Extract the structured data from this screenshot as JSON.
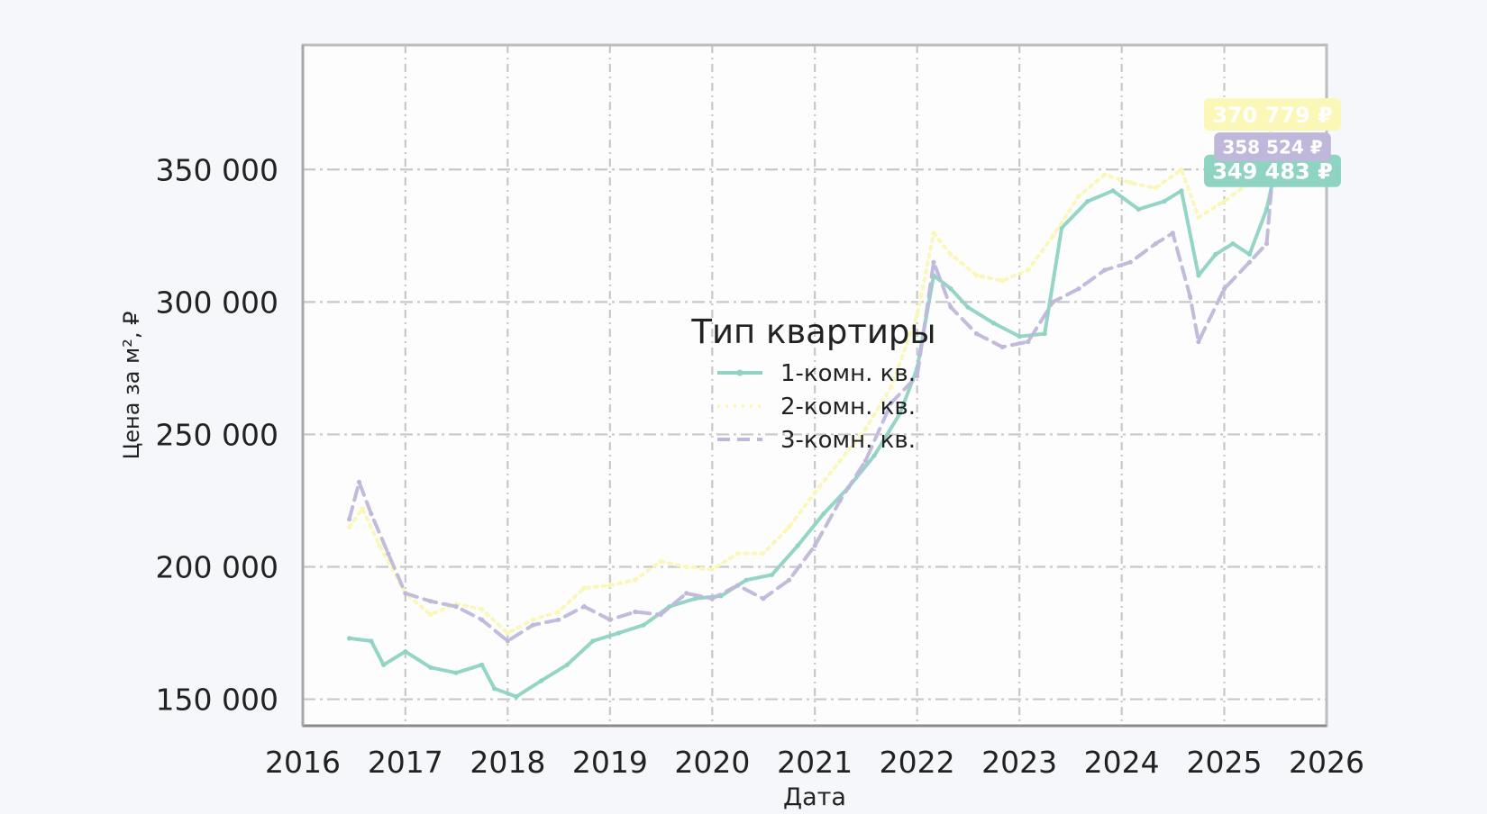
{
  "chart_data": {
    "type": "line",
    "title": "",
    "xlabel": "Дата",
    "ylabel": "Цена за м², ₽",
    "xlim": [
      "2016-01-01",
      "2026-01-01"
    ],
    "ylim": [
      140000,
      397000
    ],
    "grid": true,
    "x_ticks": [
      "2016",
      "2017",
      "2018",
      "2019",
      "2020",
      "2021",
      "2022",
      "2023",
      "2024",
      "2025",
      "2026"
    ],
    "y_ticks": [
      "150 000",
      "200 000",
      "250 000",
      "300 000",
      "350 000"
    ],
    "legend": {
      "title": "Тип квартиры",
      "placement": "center"
    },
    "colors": {
      "background": "#f6f7fa",
      "plot_background": "#fdfdfe",
      "grid": "#c8c8cc",
      "axis": "#bdbdbd",
      "text": "#222222"
    },
    "series": [
      {
        "name": "1-комн. кв.",
        "color": "#8fd3c3",
        "line_style": "solid",
        "end_label": "349 483 ₽",
        "points": [
          [
            "2016-06-15",
            173000
          ],
          [
            "2016-09-01",
            172000
          ],
          [
            "2016-10-15",
            163000
          ],
          [
            "2017-01-01",
            168000
          ],
          [
            "2017-04-01",
            162000
          ],
          [
            "2017-07-01",
            160000
          ],
          [
            "2017-10-01",
            163000
          ],
          [
            "2017-11-15",
            154000
          ],
          [
            "2018-02-01",
            151000
          ],
          [
            "2018-05-01",
            157000
          ],
          [
            "2018-08-01",
            163000
          ],
          [
            "2018-11-01",
            172000
          ],
          [
            "2019-02-01",
            175000
          ],
          [
            "2019-05-01",
            178000
          ],
          [
            "2019-08-01",
            185000
          ],
          [
            "2019-11-01",
            188000
          ],
          [
            "2020-02-01",
            189000
          ],
          [
            "2020-05-01",
            195000
          ],
          [
            "2020-08-01",
            197000
          ],
          [
            "2020-11-01",
            208000
          ],
          [
            "2021-02-01",
            220000
          ],
          [
            "2021-05-01",
            230000
          ],
          [
            "2021-08-01",
            242000
          ],
          [
            "2021-11-01",
            258000
          ],
          [
            "2022-01-01",
            275000
          ],
          [
            "2022-03-01",
            310000
          ],
          [
            "2022-05-01",
            305000
          ],
          [
            "2022-07-01",
            298000
          ],
          [
            "2022-10-01",
            292000
          ],
          [
            "2023-01-01",
            287000
          ],
          [
            "2023-04-01",
            288000
          ],
          [
            "2023-06-01",
            328000
          ],
          [
            "2023-09-01",
            338000
          ],
          [
            "2023-12-01",
            342000
          ],
          [
            "2024-03-01",
            335000
          ],
          [
            "2024-06-01",
            338000
          ],
          [
            "2024-08-01",
            342000
          ],
          [
            "2024-10-01",
            310000
          ],
          [
            "2024-12-01",
            318000
          ],
          [
            "2025-02-01",
            322000
          ],
          [
            "2025-04-01",
            318000
          ],
          [
            "2025-06-01",
            335000
          ],
          [
            "2025-07-01",
            349483
          ]
        ]
      },
      {
        "name": "2-комн. кв.",
        "color": "#fbf7b6",
        "line_style": "dotted",
        "end_label": "370 779 ₽",
        "points": [
          [
            "2016-06-15",
            215000
          ],
          [
            "2016-08-01",
            222000
          ],
          [
            "2016-10-01",
            208000
          ],
          [
            "2017-01-01",
            190000
          ],
          [
            "2017-04-01",
            182000
          ],
          [
            "2017-07-01",
            186000
          ],
          [
            "2017-10-01",
            184000
          ],
          [
            "2018-01-01",
            175000
          ],
          [
            "2018-04-01",
            180000
          ],
          [
            "2018-07-01",
            183000
          ],
          [
            "2018-10-01",
            192000
          ],
          [
            "2019-01-01",
            193000
          ],
          [
            "2019-04-01",
            195000
          ],
          [
            "2019-07-01",
            202000
          ],
          [
            "2019-10-01",
            200000
          ],
          [
            "2020-01-01",
            199000
          ],
          [
            "2020-04-01",
            205000
          ],
          [
            "2020-07-01",
            205000
          ],
          [
            "2020-10-01",
            215000
          ],
          [
            "2021-01-01",
            228000
          ],
          [
            "2021-04-01",
            240000
          ],
          [
            "2021-07-01",
            252000
          ],
          [
            "2021-10-01",
            268000
          ],
          [
            "2022-01-01",
            295000
          ],
          [
            "2022-03-01",
            326000
          ],
          [
            "2022-05-01",
            318000
          ],
          [
            "2022-08-01",
            310000
          ],
          [
            "2022-11-01",
            308000
          ],
          [
            "2023-02-01",
            312000
          ],
          [
            "2023-05-01",
            325000
          ],
          [
            "2023-08-01",
            340000
          ],
          [
            "2023-11-01",
            348000
          ],
          [
            "2024-02-01",
            345000
          ],
          [
            "2024-05-01",
            343000
          ],
          [
            "2024-08-01",
            350000
          ],
          [
            "2024-10-01",
            332000
          ],
          [
            "2025-01-01",
            338000
          ],
          [
            "2025-04-01",
            345000
          ],
          [
            "2025-06-01",
            358000
          ],
          [
            "2025-07-01",
            370779
          ]
        ]
      },
      {
        "name": "3-комн. кв.",
        "color": "#bfb8da",
        "line_style": "dashed",
        "end_label": "358 524 ₽",
        "points": [
          [
            "2016-06-15",
            218000
          ],
          [
            "2016-07-20",
            232000
          ],
          [
            "2016-09-01",
            220000
          ],
          [
            "2016-11-01",
            205000
          ],
          [
            "2017-01-01",
            190000
          ],
          [
            "2017-04-01",
            187000
          ],
          [
            "2017-07-01",
            185000
          ],
          [
            "2017-10-01",
            180000
          ],
          [
            "2018-01-01",
            172000
          ],
          [
            "2018-04-01",
            178000
          ],
          [
            "2018-07-01",
            180000
          ],
          [
            "2018-10-01",
            185000
          ],
          [
            "2019-01-01",
            180000
          ],
          [
            "2019-04-01",
            183000
          ],
          [
            "2019-07-01",
            182000
          ],
          [
            "2019-10-01",
            190000
          ],
          [
            "2020-01-01",
            188000
          ],
          [
            "2020-04-01",
            193000
          ],
          [
            "2020-07-01",
            188000
          ],
          [
            "2020-10-01",
            195000
          ],
          [
            "2021-01-01",
            208000
          ],
          [
            "2021-04-01",
            225000
          ],
          [
            "2021-07-01",
            240000
          ],
          [
            "2021-10-01",
            262000
          ],
          [
            "2022-01-01",
            272000
          ],
          [
            "2022-03-01",
            315000
          ],
          [
            "2022-05-01",
            298000
          ],
          [
            "2022-08-01",
            288000
          ],
          [
            "2022-11-01",
            283000
          ],
          [
            "2023-02-01",
            285000
          ],
          [
            "2023-05-01",
            300000
          ],
          [
            "2023-08-01",
            305000
          ],
          [
            "2023-11-01",
            312000
          ],
          [
            "2024-02-01",
            315000
          ],
          [
            "2024-05-01",
            322000
          ],
          [
            "2024-07-01",
            326000
          ],
          [
            "2024-09-01",
            302000
          ],
          [
            "2024-10-01",
            285000
          ],
          [
            "2025-01-01",
            305000
          ],
          [
            "2025-04-01",
            315000
          ],
          [
            "2025-06-01",
            322000
          ],
          [
            "2025-07-01",
            358524
          ]
        ]
      }
    ]
  }
}
